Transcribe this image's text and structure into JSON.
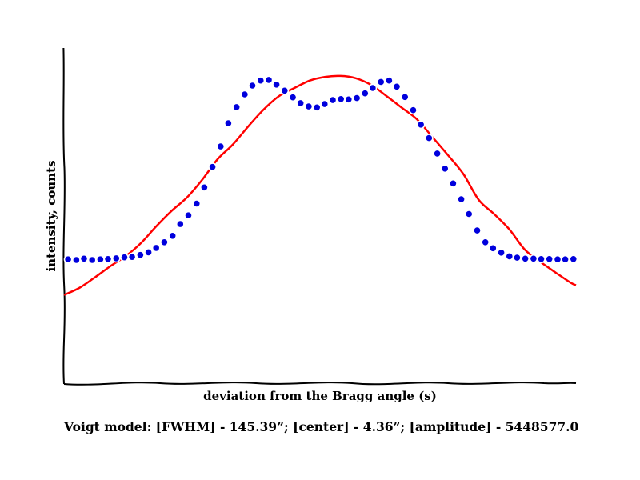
{
  "chart_data": {
    "type": "line",
    "title": "",
    "xlabel": "deviation from the Bragg angle (s)",
    "ylabel": "intensity, counts",
    "xlim": [
      0,
      100
    ],
    "ylim": [
      0,
      100
    ],
    "grid": false,
    "style": "hand-drawn (xkcd)",
    "series": [
      {
        "kind": "model-line",
        "color": "#ff0000",
        "x": [
          0,
          3,
          6,
          9,
          12,
          15,
          18,
          21,
          24,
          27,
          30,
          33,
          36,
          39,
          42,
          45,
          48,
          51,
          54,
          57,
          60,
          63,
          66,
          69,
          72,
          75,
          78,
          81,
          84,
          87,
          90,
          93,
          96,
          99,
          100
        ],
        "y": [
          26.5,
          28.6,
          31.7,
          35.0,
          38.0,
          41.9,
          46.9,
          51.5,
          55.5,
          60.8,
          66.9,
          71.3,
          76.7,
          81.7,
          85.7,
          88.1,
          90.3,
          91.4,
          91.7,
          91.0,
          89.0,
          85.7,
          82.2,
          78.7,
          73.4,
          68.1,
          62.5,
          54.8,
          50.6,
          46.0,
          40.0,
          36.4,
          33.2,
          30.1,
          29.4
        ]
      },
      {
        "kind": "data-points",
        "color": "#0000dd",
        "x": [
          0.8,
          2.4,
          3.9,
          5.5,
          7.1,
          8.6,
          10.2,
          11.8,
          13.3,
          14.9,
          16.5,
          18.0,
          19.6,
          21.2,
          22.7,
          24.3,
          25.9,
          27.4,
          29.0,
          30.6,
          32.1,
          33.7,
          35.3,
          36.8,
          38.4,
          40.0,
          41.5,
          43.1,
          44.7,
          46.2,
          47.8,
          49.4,
          50.9,
          52.5,
          54.1,
          55.6,
          57.2,
          58.8,
          60.3,
          61.9,
          63.5,
          65.0,
          66.6,
          68.2,
          69.7,
          71.3,
          72.9,
          74.4,
          76.0,
          77.6,
          79.1,
          80.7,
          82.3,
          83.8,
          85.4,
          87.0,
          88.5,
          90.1,
          91.7,
          93.2,
          94.8,
          96.4,
          97.9,
          99.5
        ],
        "y": [
          37.1,
          36.9,
          37.3,
          36.9,
          37.1,
          37.2,
          37.4,
          37.7,
          37.8,
          38.4,
          39.2,
          40.5,
          42.2,
          44.1,
          47.6,
          50.2,
          53.7,
          58.5,
          64.6,
          70.7,
          77.6,
          82.4,
          86.2,
          88.8,
          90.3,
          90.5,
          89.1,
          87.3,
          85.3,
          83.6,
          82.6,
          82.3,
          83.3,
          84.5,
          84.8,
          84.7,
          85.1,
          86.5,
          88.1,
          89.9,
          90.3,
          88.5,
          85.4,
          81.5,
          77.2,
          73.2,
          68.6,
          64.1,
          59.7,
          55.0,
          50.6,
          45.7,
          42.2,
          40.4,
          39.1,
          38.0,
          37.6,
          37.3,
          37.3,
          37.2,
          37.2,
          37.1,
          37.1,
          37.2
        ]
      }
    ]
  },
  "caption": "Voigt model:   [FWHM] - 145.39”; [center] - 4.36”; [amplitude] - 5448577.0"
}
